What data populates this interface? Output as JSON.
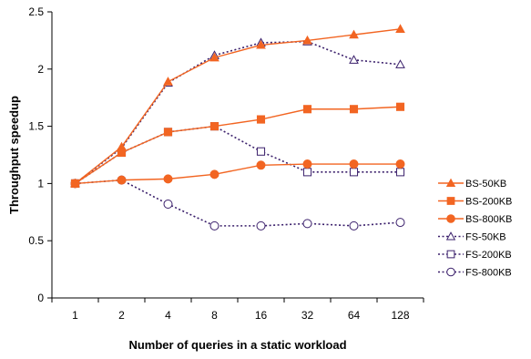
{
  "chart_data": {
    "type": "line",
    "categories": [
      "1",
      "2",
      "4",
      "8",
      "16",
      "32",
      "64",
      "128"
    ],
    "series": [
      {
        "name": "BS-50KB",
        "values": [
          1.0,
          1.32,
          1.89,
          2.1,
          2.21,
          2.25,
          2.3,
          2.35
        ],
        "color": "#f26522",
        "style": "solid",
        "marker": "triangle",
        "filled": true
      },
      {
        "name": "BS-200KB",
        "values": [
          1.0,
          1.27,
          1.45,
          1.5,
          1.56,
          1.65,
          1.65,
          1.67
        ],
        "color": "#f26522",
        "style": "solid",
        "marker": "square",
        "filled": true
      },
      {
        "name": "BS-800KB",
        "values": [
          1.0,
          1.03,
          1.04,
          1.08,
          1.16,
          1.17,
          1.17,
          1.17
        ],
        "color": "#f26522",
        "style": "solid",
        "marker": "circle",
        "filled": true
      },
      {
        "name": "FS-50KB",
        "values": [
          1.0,
          1.31,
          1.88,
          2.12,
          2.23,
          2.24,
          2.08,
          2.04
        ],
        "color": "#3a1f6b",
        "style": "dotted",
        "marker": "triangle",
        "filled": false
      },
      {
        "name": "FS-200KB",
        "values": [
          1.0,
          1.27,
          1.45,
          1.5,
          1.28,
          1.1,
          1.1,
          1.1
        ],
        "color": "#3a1f6b",
        "style": "dotted",
        "marker": "square",
        "filled": false
      },
      {
        "name": "FS-800KB",
        "values": [
          1.0,
          1.03,
          0.82,
          0.63,
          0.63,
          0.65,
          0.63,
          0.66
        ],
        "color": "#3a1f6b",
        "style": "dotted",
        "marker": "circle",
        "filled": false
      }
    ],
    "xlabel": "Number of queries in a static workload",
    "ylabel": "Throughput speedup",
    "ylim": [
      0,
      2.5
    ],
    "yticks": [
      "0",
      "0.5",
      "1",
      "1.5",
      "2",
      "2.5"
    ],
    "grid": false,
    "legend_position": "right"
  }
}
